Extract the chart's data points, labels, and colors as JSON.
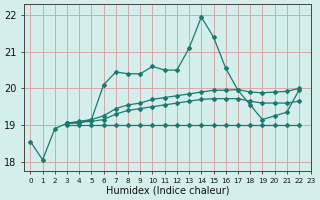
{
  "xlabel": "Humidex (Indice chaleur)",
  "bg_color": "#d4eeec",
  "grid_color": "#d4a8a8",
  "line_color": "#1a7a6e",
  "xlim": [
    -0.5,
    23
  ],
  "ylim": [
    17.75,
    22.3
  ],
  "yticks": [
    18,
    19,
    20,
    21,
    22
  ],
  "xtick_labels": [
    "0",
    "1",
    "2",
    "3",
    "4",
    "5",
    "6",
    "7",
    "8",
    "9",
    "10",
    "11",
    "12",
    "13",
    "14",
    "15",
    "16",
    "17",
    "18",
    "19",
    "20",
    "21",
    "22",
    "23"
  ],
  "series": [
    {
      "x": [
        0,
        1,
        2,
        3,
        4,
        5,
        6,
        7,
        8,
        9,
        10,
        11,
        12,
        13,
        14,
        15,
        16,
        17,
        18,
        19,
        20,
        21,
        22
      ],
      "y": [
        18.55,
        18.05,
        18.9,
        19.05,
        19.05,
        19.15,
        20.1,
        20.45,
        20.4,
        20.4,
        20.6,
        20.5,
        20.5,
        21.1,
        21.95,
        21.4,
        20.55,
        19.95,
        19.55,
        19.15,
        19.25,
        19.35,
        19.95
      ]
    },
    {
      "x": [
        3,
        4,
        5,
        6,
        7,
        8,
        9,
        10,
        11,
        12,
        13,
        14,
        15,
        16,
        17,
        18,
        19,
        20,
        21,
        22
      ],
      "y": [
        19.05,
        19.1,
        19.15,
        19.25,
        19.45,
        19.55,
        19.6,
        19.7,
        19.75,
        19.8,
        19.85,
        19.9,
        19.95,
        19.95,
        19.97,
        19.9,
        19.88,
        19.9,
        19.92,
        20.0
      ]
    },
    {
      "x": [
        3,
        4,
        5,
        6,
        7,
        8,
        9,
        10,
        11,
        12,
        13,
        14,
        15,
        16,
        17,
        18,
        19,
        20,
        21,
        22
      ],
      "y": [
        19.05,
        19.08,
        19.1,
        19.15,
        19.3,
        19.4,
        19.45,
        19.5,
        19.55,
        19.6,
        19.65,
        19.7,
        19.72,
        19.72,
        19.72,
        19.65,
        19.6,
        19.6,
        19.6,
        19.65
      ]
    },
    {
      "x": [
        3,
        4,
        5,
        6,
        7,
        8,
        9,
        10,
        11,
        12,
        13,
        14,
        15,
        16,
        17,
        18,
        19,
        20,
        21,
        22
      ],
      "y": [
        19.0,
        19.0,
        19.0,
        19.0,
        19.0,
        19.0,
        19.0,
        19.0,
        19.0,
        19.0,
        19.0,
        19.0,
        19.0,
        19.0,
        19.0,
        19.0,
        19.0,
        19.0,
        19.0,
        19.0
      ]
    }
  ]
}
